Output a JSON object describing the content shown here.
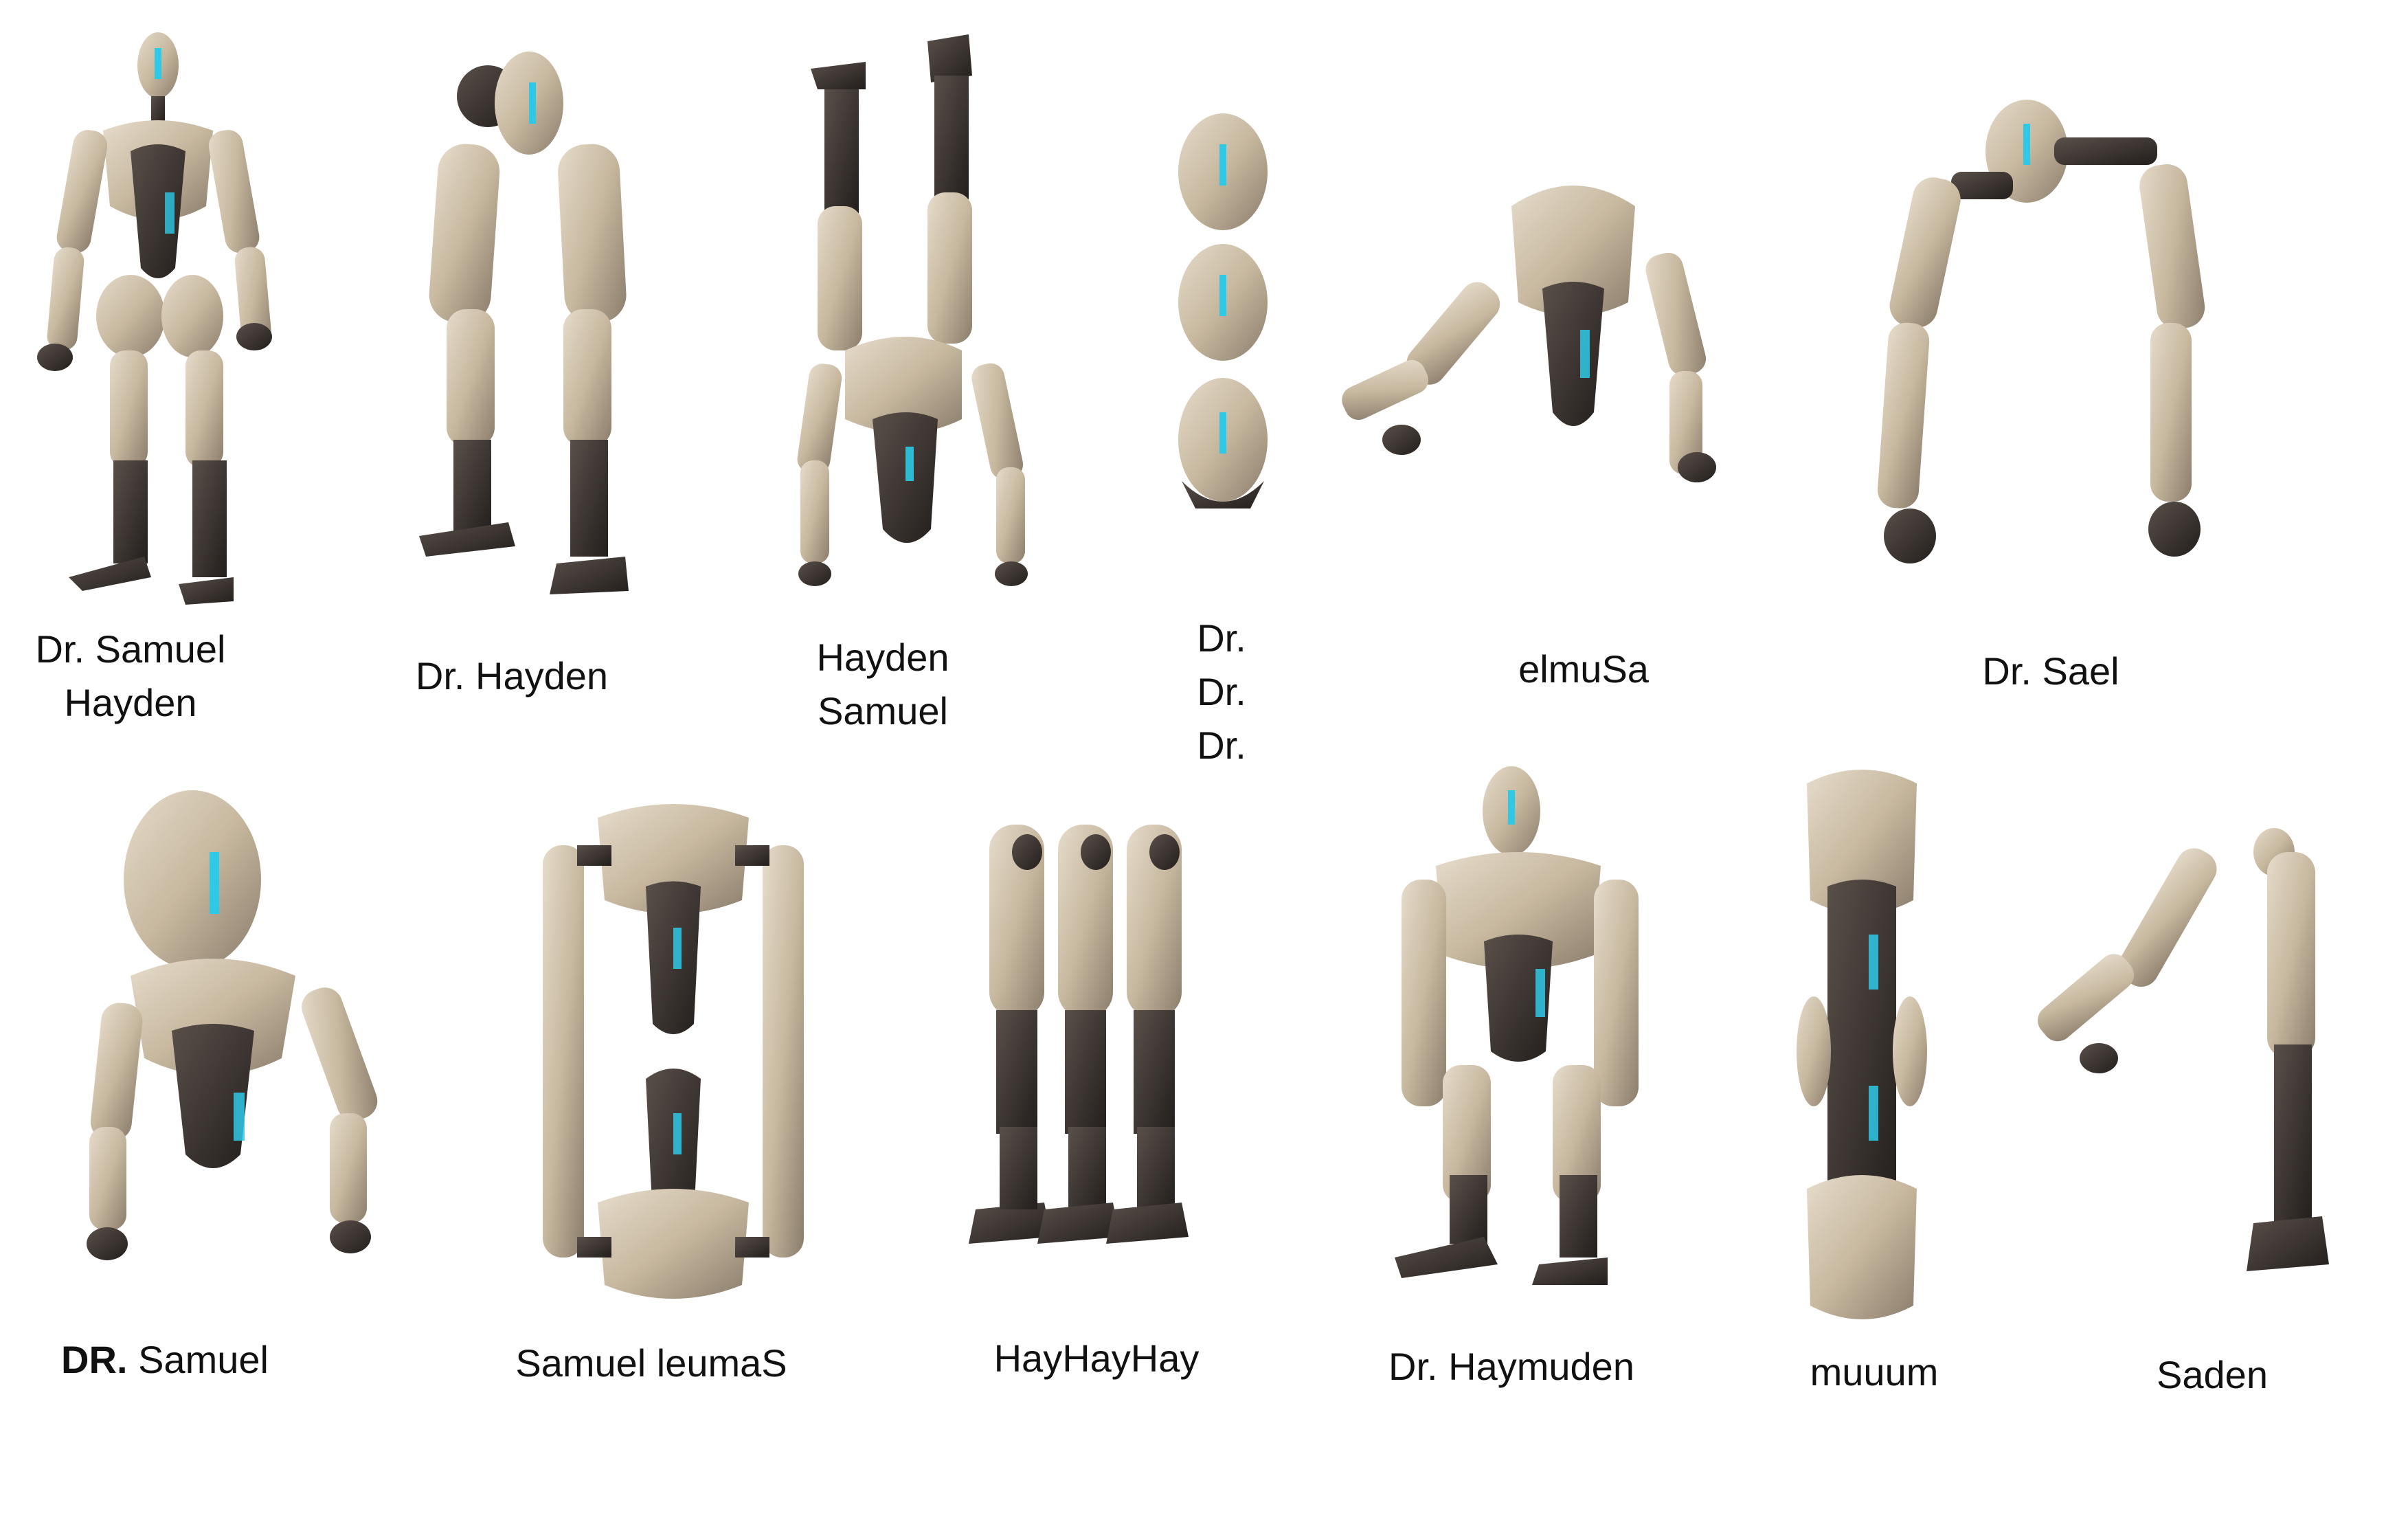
{
  "captions": {
    "c1": [
      "Dr. Samuel",
      "Hayden"
    ],
    "c2": "Dr. Hayden",
    "c3": [
      "Hayden",
      "Samuel"
    ],
    "c4": [
      "Dr.",
      "Dr.",
      "Dr."
    ],
    "c5": "elmuSa",
    "c6": "Dr. Sael",
    "c7_bold": "DR.",
    "c7_rest": "Samuel",
    "c8": "Samuel leumaS",
    "c9": "HayHayHay",
    "c10": "Dr. Haymuden",
    "c11": "muuum",
    "c12": "Saden"
  },
  "figures": [
    {
      "id": "robot-full",
      "pose": "standing"
    },
    {
      "id": "robot-hayden",
      "pose": "bent-head-to-knee"
    },
    {
      "id": "robot-handstand",
      "pose": "upside-down"
    },
    {
      "id": "robot-stack-heads",
      "pose": "stacked-heads"
    },
    {
      "id": "robot-crawl",
      "pose": "torso-arms"
    },
    {
      "id": "robot-sael",
      "pose": "head-and-arms-arch"
    },
    {
      "id": "robot-dr-samuel",
      "pose": "head-on-torso"
    },
    {
      "id": "robot-loop",
      "pose": "mirrored-torsos"
    },
    {
      "id": "robot-triple-legs",
      "pose": "three-legs"
    },
    {
      "id": "robot-haymuden",
      "pose": "crouch"
    },
    {
      "id": "robot-muuum",
      "pose": "stacked-torsos"
    },
    {
      "id": "robot-saden",
      "pose": "arm-leg"
    }
  ],
  "colors": {
    "shell": "#cdbfa8",
    "shell_dark": "#8a7f6f",
    "carbon": "#3b3431",
    "glow": "#2ec9e6"
  }
}
